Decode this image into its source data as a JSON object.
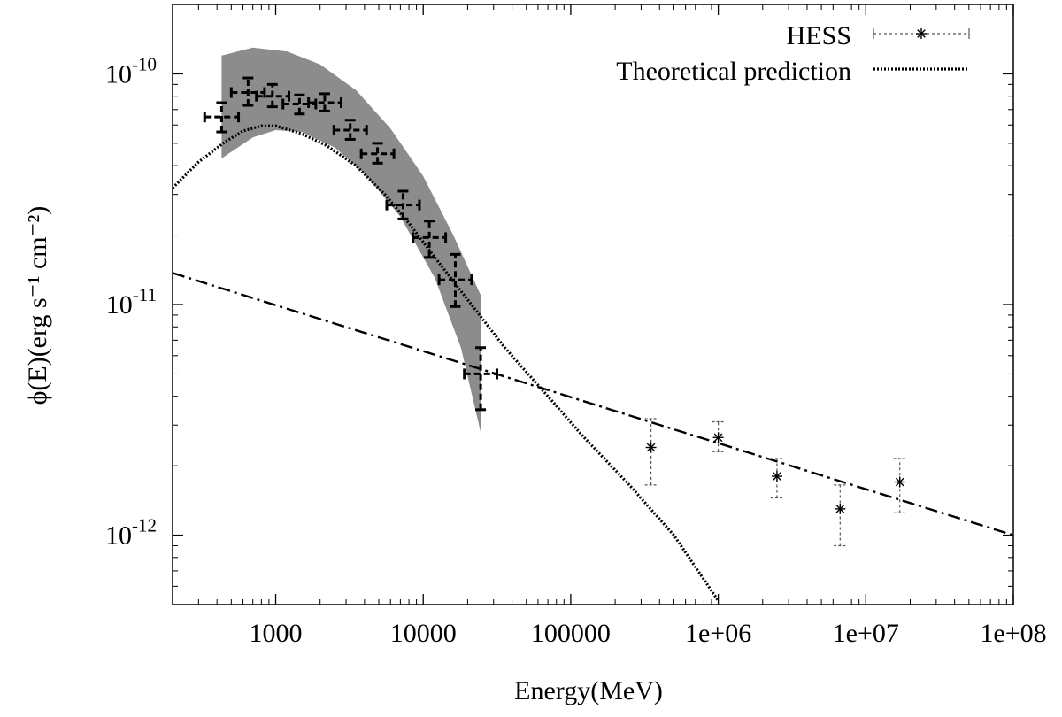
{
  "chart_data": {
    "type": "scatter",
    "xscale": "log",
    "yscale": "log",
    "xlim": [
      200,
      100000000
    ],
    "ylim": [
      5e-13,
      2e-10
    ],
    "xlabel": "Energy(MeV)",
    "ylabel": "ϕ(E)(erg s⁻¹ cm⁻²)",
    "x_ticks": [
      {
        "value": 1000,
        "label": "1000"
      },
      {
        "value": 10000,
        "label": "10000"
      },
      {
        "value": 100000,
        "label": "100000"
      },
      {
        "value": 1000000,
        "label": "1e+06"
      },
      {
        "value": 10000000,
        "label": "1e+07"
      },
      {
        "value": 100000000,
        "label": "1e+08"
      }
    ],
    "y_ticks": [
      {
        "value": 1e-10,
        "mant": "10",
        "exp": "-10"
      },
      {
        "value": 1e-11,
        "mant": "10",
        "exp": "-11"
      },
      {
        "value": 1e-12,
        "mant": "10",
        "exp": "-12"
      }
    ],
    "legend_position": "top-right",
    "series": [
      {
        "name": "HESS",
        "kind": "points_with_errorbars",
        "marker": "asterisk",
        "points": [
          {
            "x": 350000,
            "y": 2.4e-12,
            "ylo": 1.65e-12,
            "yhi": 3.2e-12
          },
          {
            "x": 1000000,
            "y": 2.65e-12,
            "ylo": 2.3e-12,
            "yhi": 3.1e-12
          },
          {
            "x": 2500000,
            "y": 1.8e-12,
            "ylo": 1.45e-12,
            "yhi": 2.15e-12
          },
          {
            "x": 6700000,
            "y": 1.3e-12,
            "ylo": 9e-13,
            "yhi": 1.65e-12
          },
          {
            "x": 17000000,
            "y": 1.7e-12,
            "ylo": 1.25e-12,
            "yhi": 2.15e-12
          }
        ]
      },
      {
        "name": "Theoretical prediction",
        "kind": "line",
        "style": "dotted",
        "points": [
          {
            "x": 200,
            "y": 3.2e-11
          },
          {
            "x": 300,
            "y": 4.15e-11
          },
          {
            "x": 450,
            "y": 5.05e-11
          },
          {
            "x": 600,
            "y": 5.65e-11
          },
          {
            "x": 800,
            "y": 5.95e-11
          },
          {
            "x": 1000,
            "y": 5.95e-11
          },
          {
            "x": 1500,
            "y": 5.5e-11
          },
          {
            "x": 2200,
            "y": 4.9e-11
          },
          {
            "x": 3500,
            "y": 4e-11
          },
          {
            "x": 5500,
            "y": 3e-11
          },
          {
            "x": 8000,
            "y": 2.25e-11
          },
          {
            "x": 12000,
            "y": 1.6e-11
          },
          {
            "x": 20000,
            "y": 1.05e-11
          },
          {
            "x": 35000,
            "y": 6.6e-12
          },
          {
            "x": 70000,
            "y": 4e-12
          },
          {
            "x": 120000,
            "y": 2.7e-12
          },
          {
            "x": 250000,
            "y": 1.65e-12
          },
          {
            "x": 500000,
            "y": 1e-12
          },
          {
            "x": 1000000,
            "y": 5.2e-13
          }
        ]
      },
      {
        "kind": "line",
        "style": "dash-dot",
        "points": [
          {
            "x": 200,
            "y": 1.37e-11
          },
          {
            "x": 100000000,
            "y": 1e-12
          }
        ]
      },
      {
        "kind": "points_with_xy_errorbars",
        "style": "dashed",
        "points": [
          {
            "x": 430,
            "y": 6.5e-11,
            "xlo": 330,
            "xhi": 560,
            "ylo": 5.6e-11,
            "yhi": 7.5e-11
          },
          {
            "x": 650,
            "y": 8.3e-11,
            "xlo": 500,
            "xhi": 840,
            "ylo": 7.3e-11,
            "yhi": 9.6e-11
          },
          {
            "x": 950,
            "y": 8e-11,
            "xlo": 740,
            "xhi": 1230,
            "ylo": 7.2e-11,
            "yhi": 9e-11
          },
          {
            "x": 1450,
            "y": 7.4e-11,
            "xlo": 1120,
            "xhi": 1870,
            "ylo": 6.7e-11,
            "yhi": 8.1e-11
          },
          {
            "x": 2150,
            "y": 7.5e-11,
            "xlo": 1670,
            "xhi": 2780,
            "ylo": 6.9e-11,
            "yhi": 8.2e-11
          },
          {
            "x": 3200,
            "y": 5.7e-11,
            "xlo": 2480,
            "xhi": 4130,
            "ylo": 5.2e-11,
            "yhi": 6.3e-11
          },
          {
            "x": 4900,
            "y": 4.5e-11,
            "xlo": 3800,
            "xhi": 6330,
            "ylo": 4.1e-11,
            "yhi": 5e-11
          },
          {
            "x": 7300,
            "y": 2.7e-11,
            "xlo": 5660,
            "xhi": 9430,
            "ylo": 2.35e-11,
            "yhi": 3.1e-11
          },
          {
            "x": 11000,
            "y": 1.95e-11,
            "xlo": 8530,
            "xhi": 14200,
            "ylo": 1.6e-11,
            "yhi": 2.3e-11
          },
          {
            "x": 16500,
            "y": 1.28e-11,
            "xlo": 12800,
            "xhi": 21300,
            "ylo": 9.8e-12,
            "yhi": 1.65e-11
          },
          {
            "x": 24500,
            "y": 5e-12,
            "xlo": 19000,
            "xhi": 31600,
            "ylo": 3.5e-12,
            "yhi": 6.5e-12
          }
        ]
      },
      {
        "kind": "band",
        "fill": "#8c8c8c",
        "upper": [
          {
            "x": 430,
            "y": 1.2e-10
          },
          {
            "x": 700,
            "y": 1.3e-10
          },
          {
            "x": 1200,
            "y": 1.25e-10
          },
          {
            "x": 2000,
            "y": 1.1e-10
          },
          {
            "x": 3500,
            "y": 8.5e-11
          },
          {
            "x": 6000,
            "y": 5.8e-11
          },
          {
            "x": 10000,
            "y": 3.6e-11
          },
          {
            "x": 16000,
            "y": 2e-11
          },
          {
            "x": 24500,
            "y": 1.1e-11
          }
        ],
        "lower": [
          {
            "x": 430,
            "y": 4.3e-11
          },
          {
            "x": 700,
            "y": 5.3e-11
          },
          {
            "x": 1000,
            "y": 5.7e-11
          },
          {
            "x": 1500,
            "y": 5.6e-11
          },
          {
            "x": 2500,
            "y": 4.8e-11
          },
          {
            "x": 4000,
            "y": 3.7e-11
          },
          {
            "x": 7000,
            "y": 2.4e-11
          },
          {
            "x": 12000,
            "y": 1.3e-11
          },
          {
            "x": 18000,
            "y": 6.5e-12
          },
          {
            "x": 24500,
            "y": 2.8e-12
          }
        ]
      }
    ]
  }
}
